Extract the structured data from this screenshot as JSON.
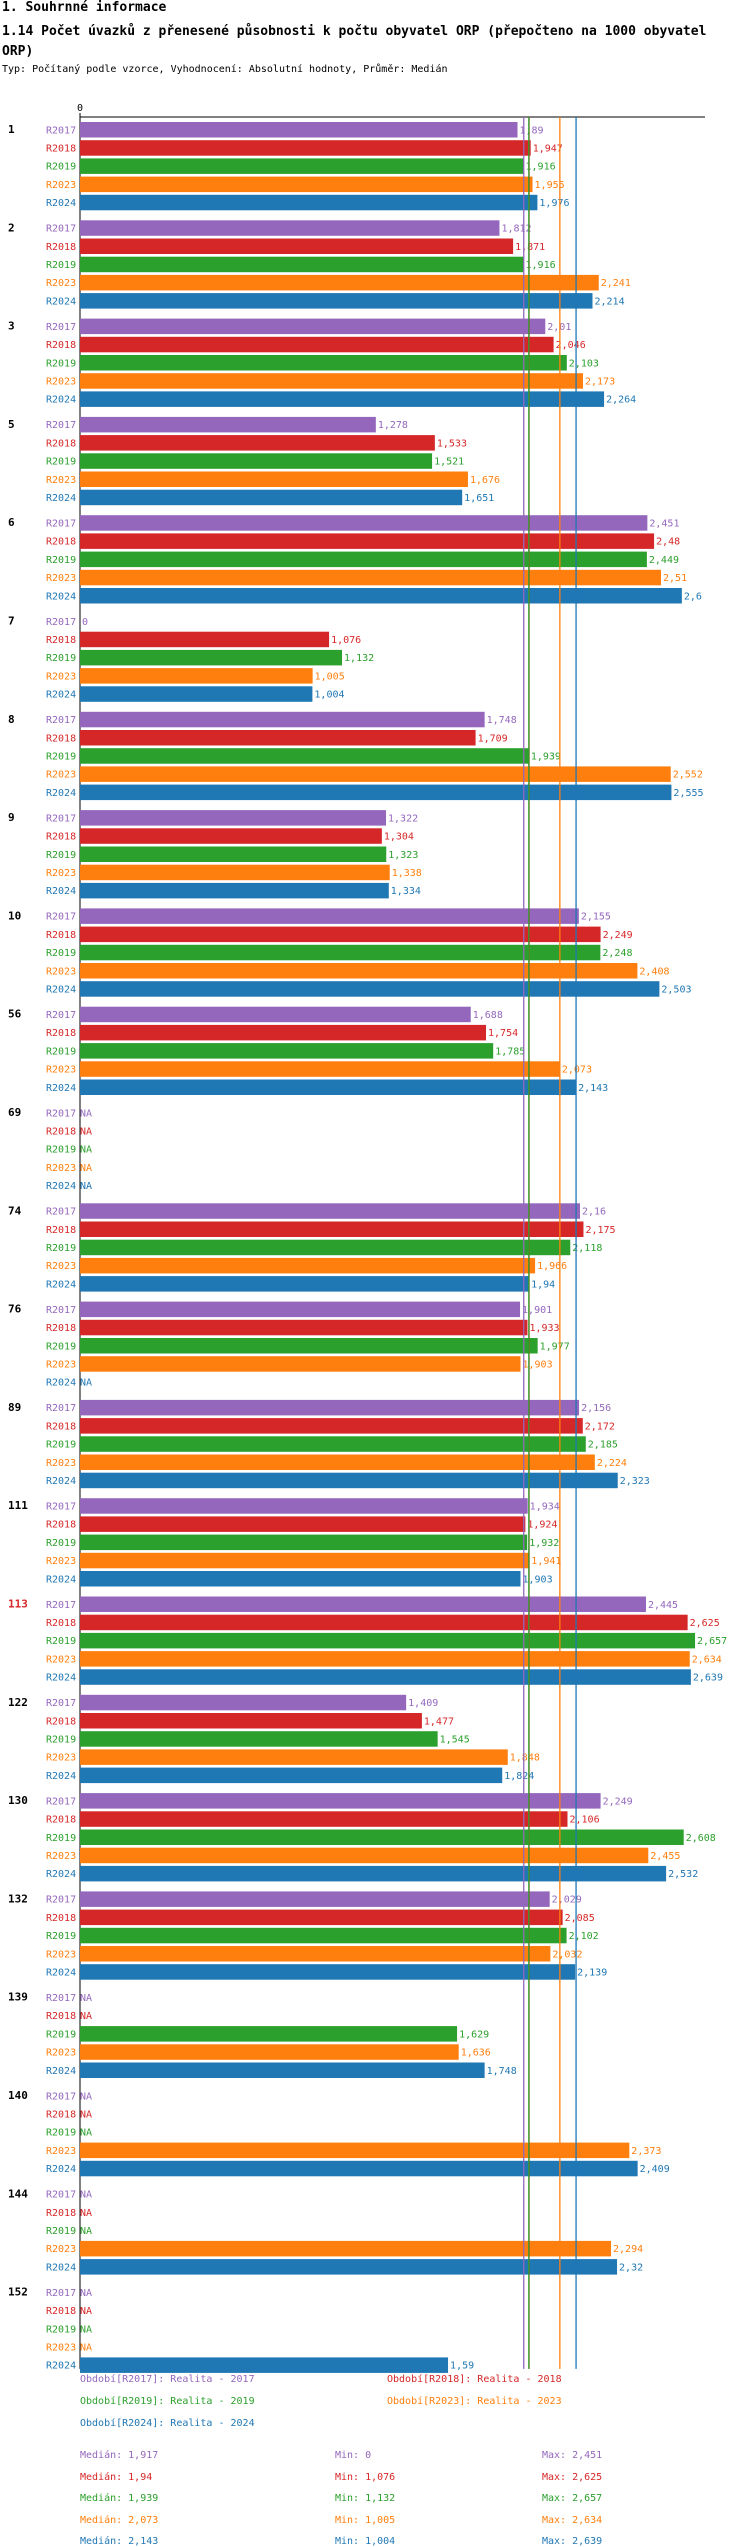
{
  "header": {
    "title1": "1. Souhrnné informace",
    "title2": "1.14 Počet úvazků z přenesené působnosti k počtu obyvatel ORP (přepočteno na 1000 obyvatel ORP)",
    "subtitle": "Typ: Počítaný podle vzorce, Vyhodnocení: Absolutní hodnoty, Průměr: Medián"
  },
  "chart_data": {
    "type": "bar",
    "orientation": "horizontal",
    "xlim": [
      0,
      2.7
    ],
    "zero_label": "0",
    "series": [
      {
        "name": "R2017",
        "color": "#9467bd"
      },
      {
        "name": "R2018",
        "color": "#d62728"
      },
      {
        "name": "R2019",
        "color": "#2ca02c"
      },
      {
        "name": "R2023",
        "color": "#ff7f0e"
      },
      {
        "name": "R2024",
        "color": "#1f77b4"
      }
    ],
    "groups": [
      {
        "label": "1",
        "highlight": false,
        "values": [
          1.89,
          1.947,
          1.916,
          1.955,
          1.976
        ],
        "labels": [
          "1,89",
          "1,947",
          "1,916",
          "1,955",
          "1,976"
        ]
      },
      {
        "label": "2",
        "highlight": false,
        "values": [
          1.812,
          1.871,
          1.916,
          2.241,
          2.214
        ],
        "labels": [
          "1,812",
          "1,871",
          "1,916",
          "2,241",
          "2,214"
        ]
      },
      {
        "label": "3",
        "highlight": false,
        "values": [
          2.01,
          2.046,
          2.103,
          2.173,
          2.264
        ],
        "labels": [
          "2,01",
          "2,046",
          "2,103",
          "2,173",
          "2,264"
        ]
      },
      {
        "label": "5",
        "highlight": false,
        "values": [
          1.278,
          1.533,
          1.521,
          1.676,
          1.651
        ],
        "labels": [
          "1,278",
          "1,533",
          "1,521",
          "1,676",
          "1,651"
        ]
      },
      {
        "label": "6",
        "highlight": false,
        "values": [
          2.451,
          2.48,
          2.449,
          2.51,
          2.6
        ],
        "labels": [
          "2,451",
          "2,48",
          "2,449",
          "2,51",
          "2,6"
        ]
      },
      {
        "label": "7",
        "highlight": false,
        "values": [
          0,
          1.076,
          1.132,
          1.005,
          1.004
        ],
        "labels": [
          "0",
          "1,076",
          "1,132",
          "1,005",
          "1,004"
        ]
      },
      {
        "label": "8",
        "highlight": false,
        "values": [
          1.748,
          1.709,
          1.939,
          2.552,
          2.555
        ],
        "labels": [
          "1,748",
          "1,709",
          "1,939",
          "2,552",
          "2,555"
        ]
      },
      {
        "label": "9",
        "highlight": false,
        "values": [
          1.322,
          1.304,
          1.323,
          1.338,
          1.334
        ],
        "labels": [
          "1,322",
          "1,304",
          "1,323",
          "1,338",
          "1,334"
        ]
      },
      {
        "label": "10",
        "highlight": false,
        "values": [
          2.155,
          2.249,
          2.248,
          2.408,
          2.503
        ],
        "labels": [
          "2,155",
          "2,249",
          "2,248",
          "2,408",
          "2,503"
        ]
      },
      {
        "label": "56",
        "highlight": false,
        "values": [
          1.688,
          1.754,
          1.785,
          2.073,
          2.143
        ],
        "labels": [
          "1,688",
          "1,754",
          "1,785",
          "2,073",
          "2,143"
        ]
      },
      {
        "label": "69",
        "highlight": false,
        "values": [
          null,
          null,
          null,
          null,
          null
        ],
        "labels": [
          "NA",
          "NA",
          "NA",
          "NA",
          "NA"
        ]
      },
      {
        "label": "74",
        "highlight": false,
        "values": [
          2.16,
          2.175,
          2.118,
          1.966,
          1.94
        ],
        "labels": [
          "2,16",
          "2,175",
          "2,118",
          "1,966",
          "1,94"
        ]
      },
      {
        "label": "76",
        "highlight": false,
        "values": [
          1.901,
          1.933,
          1.977,
          1.903,
          null
        ],
        "labels": [
          "1,901",
          "1,933",
          "1,977",
          "1,903",
          "NA"
        ]
      },
      {
        "label": "89",
        "highlight": false,
        "values": [
          2.156,
          2.172,
          2.185,
          2.224,
          2.323
        ],
        "labels": [
          "2,156",
          "2,172",
          "2,185",
          "2,224",
          "2,323"
        ]
      },
      {
        "label": "111",
        "highlight": false,
        "values": [
          1.934,
          1.924,
          1.932,
          1.941,
          1.903
        ],
        "labels": [
          "1,934",
          "1,924",
          "1,932",
          "1,941",
          "1,903"
        ]
      },
      {
        "label": "113",
        "highlight": true,
        "values": [
          2.445,
          2.625,
          2.657,
          2.634,
          2.639
        ],
        "labels": [
          "2,445",
          "2,625",
          "2,657",
          "2,634",
          "2,639"
        ]
      },
      {
        "label": "122",
        "highlight": false,
        "values": [
          1.409,
          1.477,
          1.545,
          1.848,
          1.824
        ],
        "labels": [
          "1,409",
          "1,477",
          "1,545",
          "1,848",
          "1,824"
        ]
      },
      {
        "label": "130",
        "highlight": false,
        "values": [
          2.249,
          2.106,
          2.608,
          2.455,
          2.532
        ],
        "labels": [
          "2,249",
          "2,106",
          "2,608",
          "2,455",
          "2,532"
        ]
      },
      {
        "label": "132",
        "highlight": false,
        "values": [
          2.029,
          2.085,
          2.102,
          2.032,
          2.139
        ],
        "labels": [
          "2,029",
          "2,085",
          "2,102",
          "2,032",
          "2,139"
        ]
      },
      {
        "label": "139",
        "highlight": false,
        "values": [
          null,
          null,
          1.629,
          1.636,
          1.748
        ],
        "labels": [
          "NA",
          "NA",
          "1,629",
          "1,636",
          "1,748"
        ]
      },
      {
        "label": "140",
        "highlight": false,
        "values": [
          null,
          null,
          null,
          2.373,
          2.409
        ],
        "labels": [
          "NA",
          "NA",
          "NA",
          "2,373",
          "2,409"
        ]
      },
      {
        "label": "144",
        "highlight": false,
        "values": [
          null,
          null,
          null,
          2.294,
          2.32
        ],
        "labels": [
          "NA",
          "NA",
          "NA",
          "2,294",
          "2,32"
        ]
      },
      {
        "label": "152",
        "highlight": false,
        "values": [
          null,
          null,
          null,
          null,
          1.59
        ],
        "labels": [
          "NA",
          "NA",
          "NA",
          "NA",
          "1,59"
        ]
      }
    ],
    "reference_lines": [
      {
        "series": "R2017",
        "value": 1.917,
        "color": "#9467bd"
      },
      {
        "series": "R2018",
        "value": 1.94,
        "color": "#d62728"
      },
      {
        "series": "R2019",
        "value": 1.939,
        "color": "#2ca02c"
      },
      {
        "series": "R2023",
        "value": 2.073,
        "color": "#ff7f0e"
      },
      {
        "series": "R2024",
        "value": 2.143,
        "color": "#1f77b4"
      }
    ],
    "legend": [
      {
        "text": "Období[R2017]: Realita - 2017",
        "color": "#9467bd"
      },
      {
        "text": "Období[R2018]: Realita - 2018",
        "color": "#d62728"
      },
      {
        "text": "Období[R2019]: Realita - 2019",
        "color": "#2ca02c"
      },
      {
        "text": "Období[R2023]: Realita - 2023",
        "color": "#ff7f0e"
      },
      {
        "text": "Období[R2024]: Realita - 2024",
        "color": "#1f77b4"
      }
    ],
    "stats": [
      {
        "color": "#9467bd",
        "median": "Medián: 1,917",
        "min": "Min: 0",
        "max": "Max: 2,451"
      },
      {
        "color": "#d62728",
        "median": "Medián: 1,94",
        "min": "Min: 1,076",
        "max": "Max: 2,625"
      },
      {
        "color": "#2ca02c",
        "median": "Medián: 1,939",
        "min": "Min: 1,132",
        "max": "Max: 2,657"
      },
      {
        "color": "#ff7f0e",
        "median": "Medián: 2,073",
        "min": "Min: 1,005",
        "max": "Max: 2,634"
      },
      {
        "color": "#1f77b4",
        "median": "Medián: 2,143",
        "min": "Min: 1,004",
        "max": "Max: 2,639"
      }
    ]
  }
}
